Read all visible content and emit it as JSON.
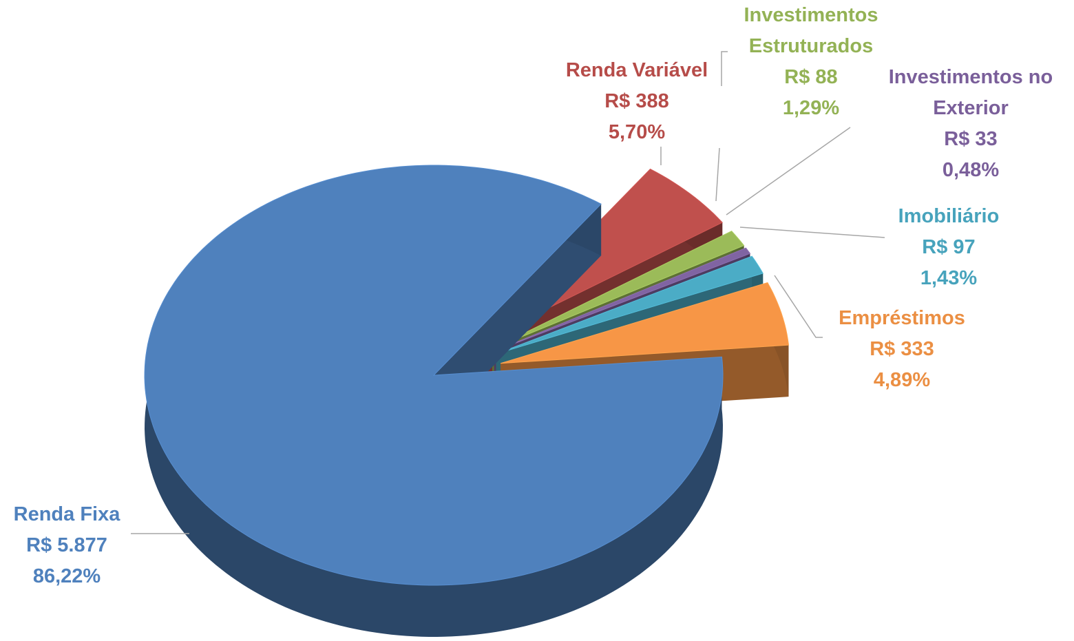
{
  "chart_data": {
    "type": "pie3d",
    "categories": [
      "Renda Fixa",
      "Renda Variável",
      "Investimentos Estruturados",
      "Investimentos no Exterior",
      "Imobiliário",
      "Empréstimos"
    ],
    "values": [
      5877,
      388,
      88,
      33,
      97,
      333
    ],
    "value_labels": [
      "R$ 5.877",
      "R$ 388",
      "R$ 88",
      "R$ 33",
      "R$ 97",
      "R$ 333"
    ],
    "percentages": [
      86.22,
      5.7,
      1.29,
      0.48,
      1.43,
      4.89
    ],
    "percent_labels": [
      "86,22%",
      "5,70%",
      "1,29%",
      "0,48%",
      "1,43%",
      "4,89%"
    ],
    "colors": [
      "#4f81bd",
      "#c0504d",
      "#9bbb59",
      "#8064a2",
      "#4bacc6",
      "#f79646"
    ]
  }
}
